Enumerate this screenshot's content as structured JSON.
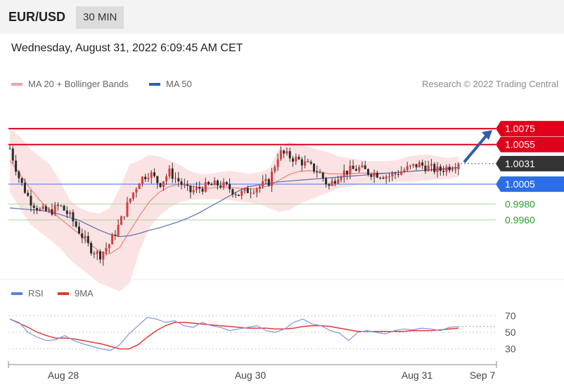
{
  "header": {
    "pair": "EUR/USD",
    "timeframe": "30 MIN"
  },
  "datetime": "Wednesday, August 31, 2022 6:09:45 AM CET",
  "legend": {
    "ma20": "MA 20 + Bollinger Bands",
    "ma50": "MA 50",
    "rsi": "RSI",
    "ma9": "9MA",
    "ma20_color": "#f08080",
    "ma50_color": "#2e5fa8",
    "rsi_color": "#5b7fe0",
    "ma9_color": "#e53935"
  },
  "credit": "Research © 2022 Trading Central",
  "chart_data": [
    {
      "type": "line",
      "x_ticks": [
        "Aug 28",
        "Aug 30",
        "Aug 31",
        "Sep 7"
      ],
      "levels": [
        {
          "value": 1.0075,
          "label": "1.0075",
          "style": "resistance",
          "color": "#e0001b"
        },
        {
          "value": 1.0055,
          "label": "1.0055",
          "style": "resistance",
          "color": "#e0001b"
        },
        {
          "value": 1.0031,
          "label": "1.0031",
          "style": "last",
          "color": "#333333"
        },
        {
          "value": 1.0005,
          "label": "1.0005",
          "style": "pivot",
          "color": "#2b6ee8"
        },
        {
          "value": 0.998,
          "label": "0.9980",
          "style": "support",
          "color": "#2e9a2e"
        },
        {
          "value": 0.996,
          "label": "0.9960",
          "style": "support",
          "color": "#2e9a2e"
        }
      ],
      "ylim": [
        0.989,
        1.0115
      ],
      "price_path": [
        1.005,
        1.001,
        0.9985,
        0.9972,
        0.997,
        0.9978,
        0.9965,
        0.9945,
        0.9925,
        0.9915,
        0.993,
        0.9955,
        0.9985,
        1.001,
        1.002,
        1.0005,
        1.002,
        1.0008,
        0.9995,
        1.0,
        1.0003,
        1.0005,
        1.0,
        0.9992,
        0.9998,
        1.0002,
        1.0008,
        1.0045,
        1.004,
        1.0035,
        1.0028,
        1.002,
        1.0002,
        1.0018,
        1.0022,
        1.0025,
        1.002,
        1.0018,
        1.0015,
        1.002,
        1.0025,
        1.003,
        1.0026,
        1.0022,
        1.0027,
        1.0031
      ],
      "ma20": [
        1.0035,
        1.0018,
        1.0,
        0.9985,
        0.9972,
        0.9962,
        0.9952,
        0.9942,
        0.993,
        0.992,
        0.9917,
        0.9925,
        0.9945,
        0.9965,
        0.9983,
        0.9995,
        1.0002,
        1.0005,
        1.0003,
        1.0001,
        1.0,
        1.0001,
        1.0001,
        1.0,
        0.9999,
        1.0,
        1.0003,
        1.001,
        1.0017,
        1.0021,
        1.0022,
        1.0021,
        1.0018,
        1.0018,
        1.0018,
        1.0019,
        1.0019,
        1.0019,
        1.0019,
        1.002,
        1.0021,
        1.0022,
        1.0023,
        1.0023,
        1.0024,
        1.0026
      ],
      "upper_band": [
        1.0075,
        1.0065,
        1.005,
        1.004,
        1.003,
        1.001,
        0.9985,
        0.9975,
        0.997,
        0.9968,
        0.9975,
        1.0,
        1.003,
        1.0035,
        1.0042,
        1.004,
        1.0035,
        1.003,
        1.0022,
        1.0018,
        1.0018,
        1.002,
        1.0022,
        1.002,
        1.0018,
        1.002,
        1.0025,
        1.005,
        1.0058,
        1.0055,
        1.0052,
        1.0048,
        1.0045,
        1.004,
        1.0038,
        1.0036,
        1.0034,
        1.0034,
        1.0034,
        1.0036,
        1.004,
        1.0042,
        1.0042,
        1.004,
        1.0038,
        1.004
      ],
      "lower_band": [
        0.9995,
        0.9975,
        0.9955,
        0.9945,
        0.9935,
        0.9925,
        0.991,
        0.99,
        0.989,
        0.988,
        0.9875,
        0.987,
        0.988,
        0.992,
        0.995,
        0.9965,
        0.9975,
        0.9982,
        0.9985,
        0.9986,
        0.9986,
        0.9986,
        0.9985,
        0.9983,
        0.9982,
        0.998,
        0.9975,
        0.997,
        0.9972,
        0.998,
        0.9985,
        0.999,
        0.9995,
        1.0,
        1.0002,
        1.0004,
        1.0005,
        1.0006,
        1.0007,
        1.0008,
        1.0008,
        1.0009,
        1.001,
        1.0011,
        1.0012,
        1.0014
      ],
      "ma50": [
        0.9975,
        0.9974,
        0.9973,
        0.9972,
        0.997,
        0.9967,
        0.9963,
        0.9959,
        0.9953,
        0.9947,
        0.9942,
        0.9939,
        0.994,
        0.9943,
        0.9947,
        0.995,
        0.9954,
        0.9958,
        0.9963,
        0.9969,
        0.9976,
        0.9983,
        0.999,
        0.9997,
        1.0002,
        1.0004,
        1.0006,
        1.0008,
        1.0009,
        1.001,
        1.0011,
        1.0012,
        1.0013,
        1.0014,
        1.0015,
        1.0016,
        1.0017,
        1.0018,
        1.0019,
        1.002,
        1.0021,
        1.0022,
        1.0023,
        1.0024,
        1.0025,
        1.0026
      ]
    },
    {
      "type": "line",
      "yticks": [
        70,
        50,
        30
      ],
      "ylim": [
        22,
        78
      ],
      "rsi": [
        66,
        62,
        50,
        44,
        40,
        41,
        46,
        40,
        36,
        33,
        30,
        28,
        35,
        48,
        58,
        68,
        66,
        62,
        64,
        58,
        56,
        62,
        58,
        56,
        52,
        54,
        56,
        58,
        52,
        50,
        54,
        62,
        66,
        60,
        58,
        52,
        49,
        40,
        50,
        52,
        50,
        48,
        52,
        54,
        53,
        55,
        54,
        52,
        56,
        57
      ],
      "ma9": [
        66,
        61,
        56,
        50,
        46,
        43,
        43,
        42,
        40,
        38,
        36,
        33,
        30,
        30,
        35,
        44,
        52,
        58,
        62,
        62,
        61,
        60,
        59,
        58,
        57,
        56,
        55,
        55,
        55,
        54,
        54,
        55,
        57,
        58,
        58,
        57,
        55,
        53,
        51,
        51,
        51,
        51,
        51,
        51,
        52,
        52,
        52,
        53,
        54,
        55
      ]
    }
  ]
}
